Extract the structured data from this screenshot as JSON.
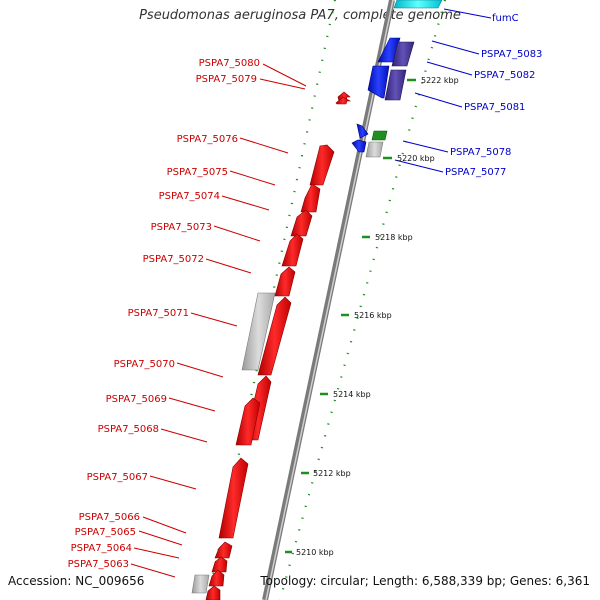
{
  "title": "Pseudomonas aeruginosa PA7, complete genome",
  "footer": {
    "accession": "Accession: NC_009656",
    "topology": "Topology: circular; Length: 6,588,339 bp; Genes: 6,361"
  },
  "colors": {
    "forward_gene": "#ff0000",
    "reverse_gene": "#0000ee",
    "reverse_gene_alt": "#4b3a9e",
    "rna_gene": "#1f8f1f",
    "pseudogene": "#c0c0c0",
    "highlight": "#00e5e5",
    "backbone": "#808080",
    "label_forward": "#cc0000",
    "label_reverse": "#0000cc",
    "dots": "#1f8f1f"
  },
  "ticks": [
    "5210 kbp",
    "5212 kbp",
    "5214 kbp",
    "5216 kbp",
    "5218 kbp",
    "5220 kbp",
    "5222 kbp"
  ],
  "forward_labels": [
    "PSPA7_5080",
    "PSPA7_5079",
    "PSPA7_5076",
    "PSPA7_5075",
    "PSPA7_5074",
    "PSPA7_5073",
    "PSPA7_5072",
    "PSPA7_5071",
    "PSPA7_5070",
    "PSPA7_5069",
    "PSPA7_5068",
    "PSPA7_5067",
    "PSPA7_5066",
    "PSPA7_5065",
    "PSPA7_5064",
    "PSPA7_5063"
  ],
  "reverse_labels": [
    "fumC",
    "PSPA7_5083",
    "PSPA7_5082",
    "PSPA7_5081",
    "PSPA7_5078",
    "PSPA7_5077"
  ]
}
